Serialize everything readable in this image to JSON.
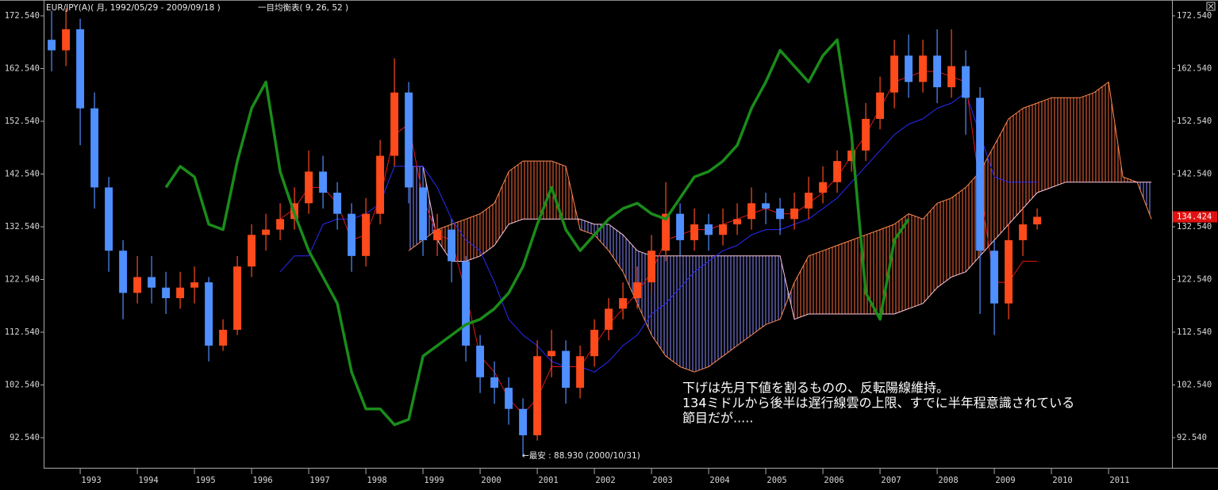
{
  "chart_data": {
    "type": "candlestick",
    "title": "EUR/JPY(A)( 月, 1992/05/29 - 2009/09/18 )",
    "subtitle": "一目均衡表( 9, 26, 52 )",
    "annotations": [
      "←最安 : 88.930 (2000/10/31)",
      "下げは先月下値を割るものの、反転陽線維持。",
      "134ミドルから後半は遅行線雲の上限、すでに半年程意識されている",
      "節目だが....."
    ],
    "x": [
      1992.5,
      1992.75,
      1993,
      1993.25,
      1993.5,
      1993.75,
      1994,
      1994.25,
      1994.5,
      1994.75,
      1995,
      1995.25,
      1995.5,
      1995.75,
      1996,
      1996.25,
      1996.5,
      1996.75,
      1997,
      1997.25,
      1997.5,
      1997.75,
      1998,
      1998.25,
      1998.5,
      1998.75,
      1999,
      1999.25,
      1999.5,
      1999.75,
      2000,
      2000.25,
      2000.5,
      2000.75,
      2001,
      2001.25,
      2001.5,
      2001.75,
      2002,
      2002.25,
      2002.5,
      2002.75,
      2003,
      2003.25,
      2003.5,
      2003.75,
      2004,
      2004.25,
      2004.5,
      2004.75,
      2005,
      2005.25,
      2005.5,
      2005.75,
      2006,
      2006.25,
      2006.5,
      2006.75,
      2007,
      2007.25,
      2007.5,
      2007.75,
      2008,
      2008.25,
      2008.5,
      2008.75,
      2009,
      2009.25,
      2009.5,
      2009.75,
      2010,
      2010.25,
      2010.5,
      2010.75,
      2011,
      2011.25,
      2011.5,
      2011.75
    ],
    "open": [
      168,
      166,
      170,
      155,
      140,
      128,
      120,
      123,
      121,
      119,
      121,
      122,
      110,
      113,
      125,
      131,
      132,
      134,
      137,
      143,
      139,
      135,
      127,
      135,
      146,
      158,
      140,
      130,
      132,
      126,
      110,
      104,
      102,
      98,
      93,
      108,
      109,
      102,
      108,
      113,
      117,
      119,
      122,
      128,
      135,
      130,
      133,
      131,
      133,
      134,
      137,
      136,
      134,
      136,
      139,
      141,
      145,
      147,
      153,
      158,
      165,
      160,
      165,
      159,
      163,
      157,
      128,
      118,
      130,
      133,
      null,
      null,
      null,
      null,
      null,
      null,
      null,
      null
    ],
    "high": [
      173.5,
      174,
      172,
      158,
      142,
      130,
      127,
      127,
      124,
      124,
      125,
      123,
      115,
      127,
      133,
      135,
      137,
      140,
      147,
      146,
      141,
      137,
      138,
      149,
      164.5,
      160,
      142,
      135,
      134,
      127,
      112,
      107,
      104,
      100,
      111,
      113,
      111,
      110,
      115,
      119,
      122,
      125,
      131,
      141,
      137,
      136,
      135,
      136,
      137,
      140,
      139,
      138,
      139,
      142,
      144,
      147,
      150,
      156,
      161,
      168,
      169,
      168,
      170,
      170,
      166,
      159,
      130,
      133,
      136,
      136,
      null,
      null,
      null,
      null,
      null,
      null,
      null,
      null
    ],
    "low": [
      162,
      163,
      148,
      136,
      124,
      115,
      118,
      118,
      116,
      117,
      118,
      107,
      109,
      112,
      123,
      128,
      130,
      132,
      135,
      136,
      132,
      124,
      125,
      133,
      144,
      137,
      127,
      127,
      122,
      107,
      101,
      99,
      95,
      88.93,
      92,
      104,
      99,
      100,
      106,
      111,
      115,
      117,
      120,
      126,
      127,
      128,
      128,
      129,
      131,
      132,
      133,
      131,
      132,
      134,
      137,
      139,
      143,
      145,
      151,
      155,
      157,
      158,
      156,
      157,
      150,
      116,
      112,
      115,
      127,
      132,
      null,
      null,
      null,
      null,
      null,
      null,
      null,
      null
    ],
    "close": [
      166,
      170,
      155,
      140,
      128,
      120,
      123,
      121,
      119,
      121,
      122,
      110,
      113,
      125,
      131,
      132,
      134,
      137,
      143,
      139,
      135,
      127,
      135,
      146,
      158,
      140,
      130,
      132,
      126,
      110,
      104,
      102,
      98,
      93,
      108,
      109,
      102,
      108,
      113,
      117,
      119,
      122,
      128,
      135,
      130,
      133,
      131,
      133,
      134,
      137,
      136,
      134,
      136,
      139,
      141,
      145,
      147,
      153,
      158,
      165,
      160,
      165,
      159,
      163,
      157,
      128,
      118,
      130,
      133,
      134.424,
      null,
      null,
      null,
      null,
      null,
      null,
      null,
      null
    ],
    "up_color": "#ff4a1c",
    "down_color": "#4f8fff",
    "series": [
      {
        "color": "#2a2aff",
        "width": 1,
        "values": [
          null,
          null,
          null,
          null,
          null,
          null,
          null,
          null,
          null,
          null,
          null,
          null,
          null,
          null,
          null,
          null,
          124,
          127,
          127,
          133,
          134,
          134,
          135,
          137,
          144,
          144,
          144,
          140,
          134,
          130,
          128,
          122,
          115,
          112,
          110,
          107,
          106,
          106,
          105,
          107,
          110,
          112,
          116,
          118,
          121,
          124,
          126,
          128,
          129,
          131,
          132,
          132,
          133,
          134,
          136,
          138,
          141,
          144,
          147,
          150,
          152,
          153,
          155,
          156,
          158,
          150,
          142,
          141,
          141,
          141,
          null,
          null,
          null,
          null,
          null,
          null,
          null,
          null
        ]
      },
      {
        "color": "#e01818",
        "width": 1,
        "values": [
          null,
          null,
          null,
          null,
          null,
          null,
          null,
          null,
          null,
          null,
          null,
          null,
          null,
          null,
          null,
          null,
          134,
          136,
          140,
          140,
          137,
          130,
          131,
          138,
          150,
          152,
          138,
          131,
          130,
          120,
          108,
          105,
          100,
          97,
          100,
          106,
          106,
          106,
          110,
          114,
          117,
          120,
          124,
          130,
          131,
          132,
          132,
          133,
          134,
          135,
          136,
          135,
          135,
          137,
          139,
          142,
          146,
          150,
          155,
          160,
          161,
          162,
          162,
          161,
          160,
          140,
          122,
          122,
          126,
          126,
          null,
          null,
          null,
          null,
          null,
          null,
          null,
          null
        ]
      },
      {
        "color": "#1a8c1a",
        "width": 3.5,
        "values": [
          null,
          null,
          null,
          null,
          null,
          null,
          null,
          null,
          140,
          144,
          142,
          133,
          132,
          145,
          155,
          160,
          143,
          135,
          128,
          123,
          118,
          105,
          98,
          98,
          95,
          96,
          108,
          110,
          112,
          114,
          115,
          117,
          120,
          125,
          133,
          140,
          132,
          128,
          131,
          134,
          136,
          137,
          135,
          134,
          138,
          142,
          143,
          145,
          148,
          155,
          160,
          166,
          163,
          160,
          165,
          168,
          150,
          120,
          115,
          130,
          134,
          null,
          null,
          null,
          null,
          null,
          null,
          null,
          null,
          null,
          null,
          null,
          null,
          null,
          null,
          null,
          null,
          null
        ]
      }
    ],
    "cloud": {
      "span_a": [
        null,
        null,
        null,
        null,
        null,
        null,
        null,
        null,
        null,
        null,
        null,
        null,
        null,
        null,
        null,
        null,
        null,
        null,
        null,
        null,
        null,
        null,
        null,
        null,
        null,
        128,
        130,
        132,
        133,
        134,
        135,
        137,
        143,
        145,
        145,
        145,
        144,
        132,
        131,
        128,
        124,
        118,
        112,
        108,
        106,
        105,
        106,
        108,
        110,
        112,
        114,
        115,
        122,
        127,
        128,
        129,
        130,
        131,
        132,
        133,
        135,
        134,
        137,
        138,
        140,
        143,
        148,
        153,
        155,
        156,
        157,
        157,
        157,
        158,
        160,
        142,
        141,
        134
      ],
      "span_b": [
        null,
        null,
        null,
        null,
        null,
        null,
        null,
        null,
        null,
        null,
        null,
        null,
        null,
        null,
        null,
        null,
        null,
        null,
        null,
        null,
        null,
        null,
        null,
        null,
        null,
        144,
        144,
        130,
        126,
        126,
        127,
        129,
        133,
        134,
        134,
        134,
        134,
        134,
        133,
        133,
        131,
        128,
        127,
        127,
        127,
        127,
        127,
        127,
        127,
        127,
        127,
        127,
        115,
        116,
        116,
        116,
        116,
        116,
        116,
        116,
        117,
        118,
        121,
        123,
        124,
        127,
        130,
        133,
        136,
        139,
        140,
        141,
        141,
        141,
        141,
        141,
        141,
        141
      ],
      "span_a_color": "#ff8a50",
      "span_b_color": "#ffc8e0",
      "up_color": "#ff6a3a",
      "down_color": "#8c8cff"
    },
    "xlim": [
      1992.36,
      2012.11
    ],
    "ylim": [
      86.83,
      174.34
    ],
    "xticks": [
      1993,
      1994,
      1995,
      1996,
      1997,
      1998,
      1999,
      2000,
      2001,
      2002,
      2003,
      2004,
      2005,
      2006,
      2007,
      2008,
      2009,
      2010,
      2011
    ],
    "yticks": [
      {
        "value": 92.54,
        "label": "92.540"
      },
      {
        "value": 102.54,
        "label": "102.540"
      },
      {
        "value": 112.54,
        "label": "112.540"
      },
      {
        "value": 122.54,
        "label": "122.540"
      },
      {
        "value": 132.54,
        "label": "132.540"
      },
      {
        "value": 142.54,
        "label": "142.540"
      },
      {
        "value": 152.54,
        "label": "152.540"
      },
      {
        "value": 162.54,
        "label": "162.540"
      },
      {
        "value": 172.54,
        "label": "172.540"
      }
    ],
    "last_color": "#e01010"
  }
}
